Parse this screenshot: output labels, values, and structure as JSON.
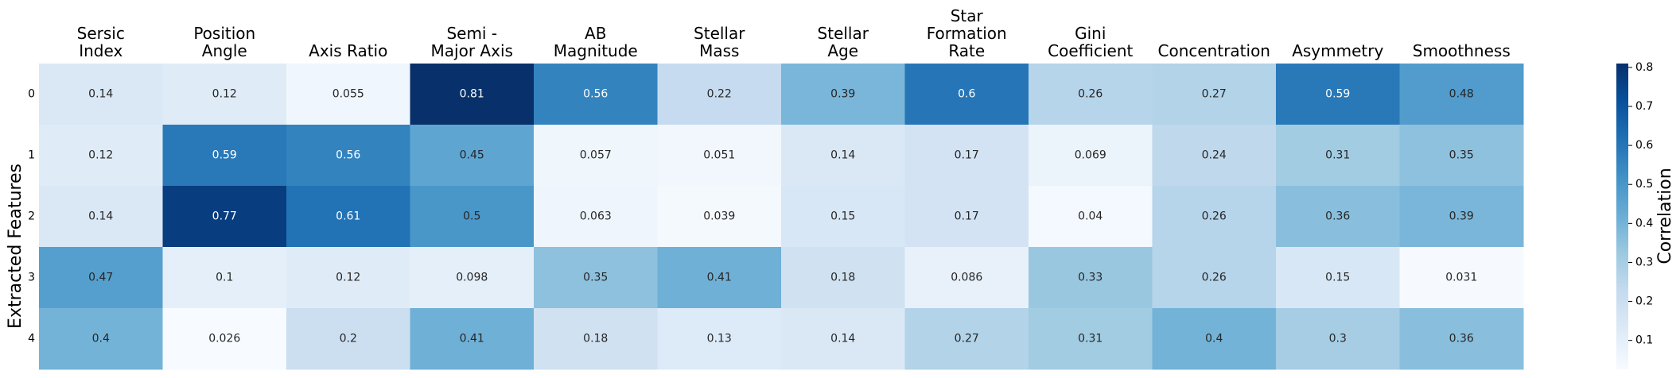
{
  "chart_data": {
    "type": "heatmap",
    "columns": [
      [
        "Sersic",
        "Index"
      ],
      [
        "Position",
        "Angle"
      ],
      [
        "Axis Ratio"
      ],
      [
        "Semi -",
        "Major Axis"
      ],
      [
        "AB",
        "Magnitude"
      ],
      [
        "Stellar",
        "Mass"
      ],
      [
        "Stellar",
        "Age"
      ],
      [
        "Star",
        "Formation",
        "Rate"
      ],
      [
        "Gini",
        "Coefficient"
      ],
      [
        "Concentration"
      ],
      [
        "Asymmetry"
      ],
      [
        "Smoothness"
      ]
    ],
    "rows": [
      "0",
      "1",
      "2",
      "3",
      "4"
    ],
    "values": [
      [
        0.14,
        0.12,
        0.055,
        0.81,
        0.56,
        0.22,
        0.39,
        0.6,
        0.26,
        0.27,
        0.59,
        0.48
      ],
      [
        0.12,
        0.59,
        0.56,
        0.45,
        0.057,
        0.051,
        0.14,
        0.17,
        0.069,
        0.24,
        0.31,
        0.35
      ],
      [
        0.14,
        0.77,
        0.61,
        0.5,
        0.063,
        0.039,
        0.15,
        0.17,
        0.04,
        0.26,
        0.36,
        0.39
      ],
      [
        0.47,
        0.1,
        0.12,
        0.098,
        0.35,
        0.41,
        0.18,
        0.086,
        0.33,
        0.26,
        0.15,
        0.031
      ],
      [
        0.4,
        0.026,
        0.2,
        0.41,
        0.18,
        0.13,
        0.14,
        0.27,
        0.31,
        0.4,
        0.3,
        0.36
      ]
    ],
    "ylabel": "Extracted Features",
    "colorbar_label": "Correlation",
    "colorbar_ticks": [
      0.1,
      0.2,
      0.3,
      0.4,
      0.5,
      0.6,
      0.7,
      0.8
    ],
    "vmin": 0.026,
    "vmax": 0.81,
    "colormap": "Blues",
    "colormap_light": "#f7fbff",
    "colormap_dark": "#08306b"
  }
}
